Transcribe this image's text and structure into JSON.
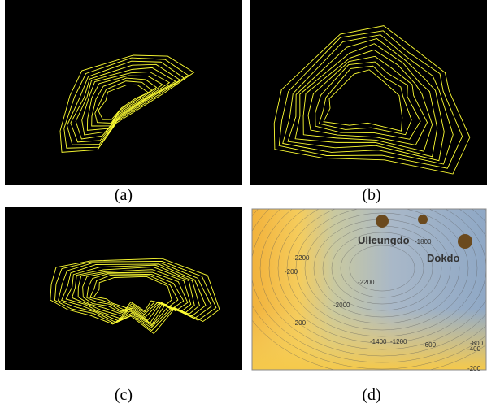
{
  "captions": [
    "(a)",
    "(b)",
    "(c)",
    "(d)"
  ],
  "map": {
    "labels": [
      "Ulleungdo",
      "Dokdo",
      "-2200",
      "-2200",
      "-2000",
      "-1400",
      "-1200",
      "-600",
      "-800",
      "-400",
      "-200",
      "-200",
      "-200",
      "-1800"
    ]
  }
}
